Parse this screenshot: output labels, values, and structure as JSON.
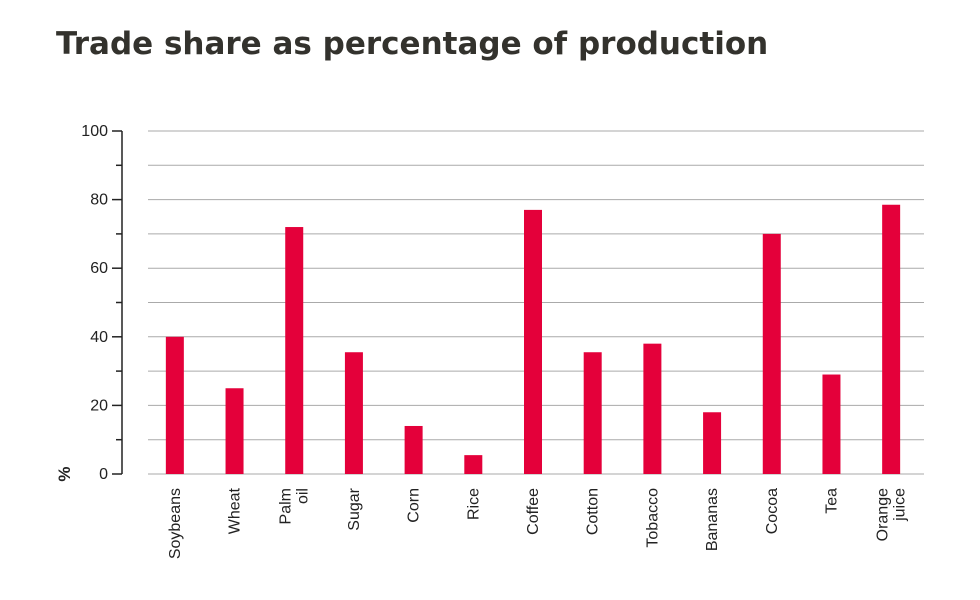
{
  "chart_data": {
    "type": "bar",
    "title": "Trade share as percentage of production",
    "ylabel": "%",
    "xlabel": "",
    "ylim": [
      0,
      100
    ],
    "yticks": [
      0,
      20,
      40,
      60,
      80,
      100
    ],
    "grid": true,
    "categories": [
      "Soybeans",
      "Wheat",
      "Palm oil",
      "Sugar",
      "Corn",
      "Rice",
      "Coffee",
      "Cotton",
      "Tobacco",
      "Bananas",
      "Cocoa",
      "Tea",
      "Orange juice"
    ],
    "values": [
      40,
      25,
      72,
      35.5,
      14,
      5.5,
      77,
      35.5,
      38,
      18,
      70,
      29,
      78.5
    ],
    "colors": {
      "bar": "#e4003a",
      "grid": "#aaaaaa",
      "axis": "#222222",
      "title": "#33322d"
    }
  }
}
